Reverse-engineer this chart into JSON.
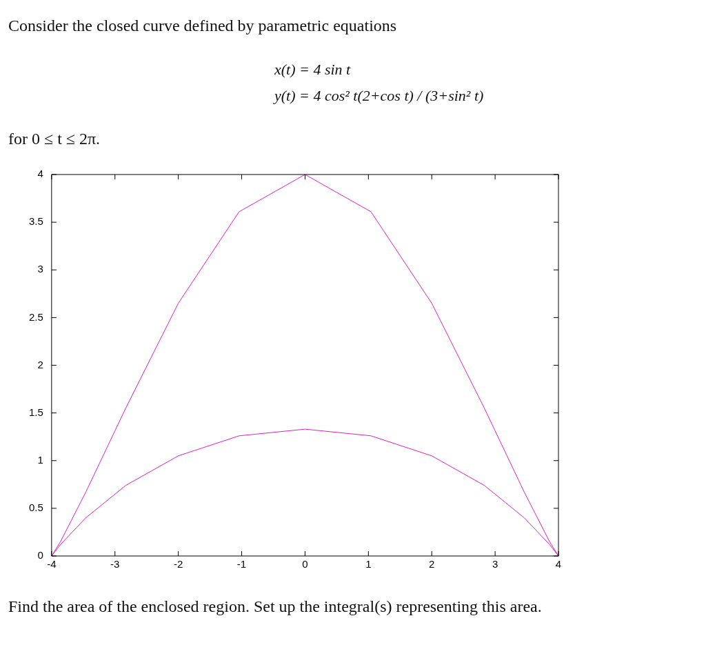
{
  "chart_data": {
    "type": "line",
    "title": "Consider the closed curve defined by parametric equations",
    "annotations": [
      "x(t) = 4 sin t",
      "y(t) = 4 cos² t(2+cos t) / (3+sin² t)",
      "for 0 ≤ t ≤ 2π.",
      "Find the area of the enclosed region. Set up the integral(s) representing this area."
    ],
    "series": [
      {
        "color": "#e020c0",
        "x": [
          -4,
          -3.86,
          -3.46,
          -2.83,
          -2,
          -1.04,
          0,
          1.04,
          2,
          2.83,
          3.46,
          3.86,
          4
        ],
        "values": [
          0,
          0.15,
          0.67,
          1.55,
          2.65,
          3.61,
          4,
          3.61,
          2.65,
          1.55,
          0.67,
          0.15,
          0
        ]
      },
      {
        "color": "#e020c0",
        "x": [
          -4,
          -3.86,
          -3.46,
          -2.83,
          -2,
          -1.04,
          0,
          1.04,
          2,
          2.83,
          3.46,
          3.86,
          4
        ],
        "values": [
          0,
          0.12,
          0.4,
          0.74,
          1.05,
          1.26,
          1.33,
          1.26,
          1.05,
          0.74,
          0.4,
          0.12,
          0
        ]
      }
    ],
    "xlim": [
      -4,
      4
    ],
    "xticks": [
      -4,
      -3,
      -2,
      -1,
      0,
      1,
      2,
      3,
      4
    ],
    "ylim": [
      0,
      4
    ],
    "yticks": [
      0,
      0.5,
      1,
      1.5,
      2,
      2.5,
      3,
      3.5,
      4
    ],
    "grid": false,
    "legend": false,
    "marker": "none",
    "line_style": "solid"
  }
}
